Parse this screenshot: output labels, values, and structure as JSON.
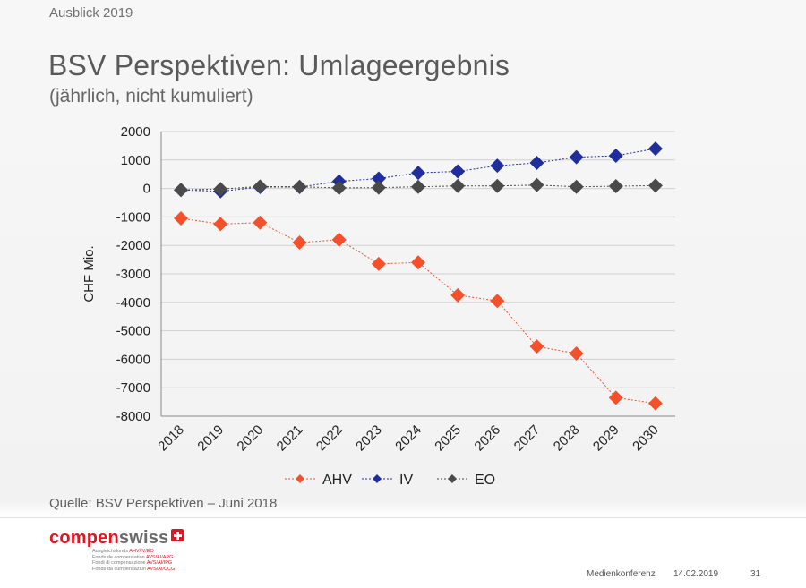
{
  "slide": {
    "kicker": "Ausblick 2019",
    "title": "BSV Perspektiven: Umlageergebnis",
    "subtitle": "(jährlich, nicht kumuliert)",
    "source": "Quelle: BSV Perspektiven – Juni 2018"
  },
  "footer": {
    "logo_part1": "compen",
    "logo_part2": "swiss",
    "taglines": [
      {
        "text": "Ausgleichsfonds ",
        "red": "AHV/IV/EO"
      },
      {
        "text": "Fonds de compensation ",
        "red": "AVS/AI/APG"
      },
      {
        "text": "Fondi di compensazione ",
        "red": "AVS/AI/IPG"
      },
      {
        "text": "Fonds da cumpensaziun ",
        "red": "AVS/AI/UCG"
      }
    ],
    "event": "Medienkonferenz",
    "date": "14.02.2019",
    "page": "31"
  },
  "colors": {
    "AHV": "#f4502a",
    "IV": "#1f2e9c",
    "EO": "#4a4a4a",
    "grid": "#d0d0d0"
  },
  "chart_data": {
    "type": "line",
    "title": "",
    "ylabel": "CHF Mio.",
    "xlabel": "",
    "ylim": [
      -8000,
      2000
    ],
    "yticks": [
      2000,
      1000,
      0,
      -1000,
      -2000,
      -3000,
      -4000,
      -5000,
      -6000,
      -7000,
      -8000
    ],
    "grid": true,
    "legend": "bottom",
    "marker": "diamond",
    "categories": [
      "2018",
      "2019",
      "2020",
      "2021",
      "2022",
      "2023",
      "2024",
      "2025",
      "2026",
      "2027",
      "2028",
      "2029",
      "2030"
    ],
    "series": [
      {
        "name": "AHV",
        "values": [
          -1050,
          -1250,
          -1200,
          -1900,
          -1800,
          -2650,
          -2600,
          -3750,
          -3950,
          -5550,
          -5800,
          -7350,
          -7550
        ]
      },
      {
        "name": "IV",
        "values": [
          -50,
          -100,
          50,
          50,
          250,
          350,
          550,
          600,
          800,
          900,
          1100,
          1150,
          1400
        ]
      },
      {
        "name": "EO",
        "values": [
          -50,
          -20,
          70,
          60,
          20,
          30,
          60,
          90,
          90,
          120,
          60,
          80,
          100
        ]
      }
    ]
  }
}
